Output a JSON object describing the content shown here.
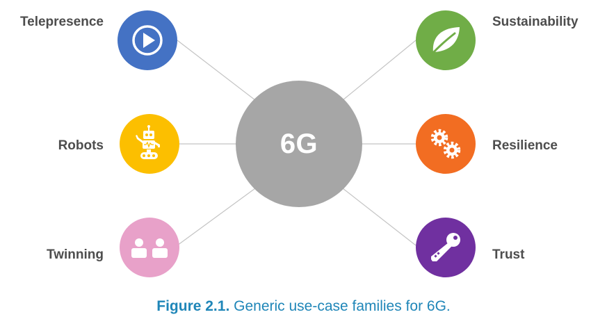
{
  "hub": {
    "label": "6G",
    "color": "#a6a6a6"
  },
  "nodes": {
    "telepresence": {
      "label": "Telepresence",
      "color": "#4472c4",
      "icon": "play-icon"
    },
    "robots": {
      "label": "Robots",
      "color": "#fcbf00",
      "icon": "robot-icon"
    },
    "twinning": {
      "label": "Twinning",
      "color": "#e8a1c9",
      "icon": "people-icon"
    },
    "sustainability": {
      "label": "Sustainability",
      "color": "#70ad47",
      "icon": "leaf-icon"
    },
    "resilience": {
      "label": "Resilience",
      "color": "#f26d22",
      "icon": "gears-icon"
    },
    "trust": {
      "label": "Trust",
      "color": "#7030a0",
      "icon": "key-icon"
    }
  },
  "caption": {
    "number": "Figure 2.1.",
    "text": "Generic use-case families for 6G.",
    "color": "#1f86b8"
  }
}
